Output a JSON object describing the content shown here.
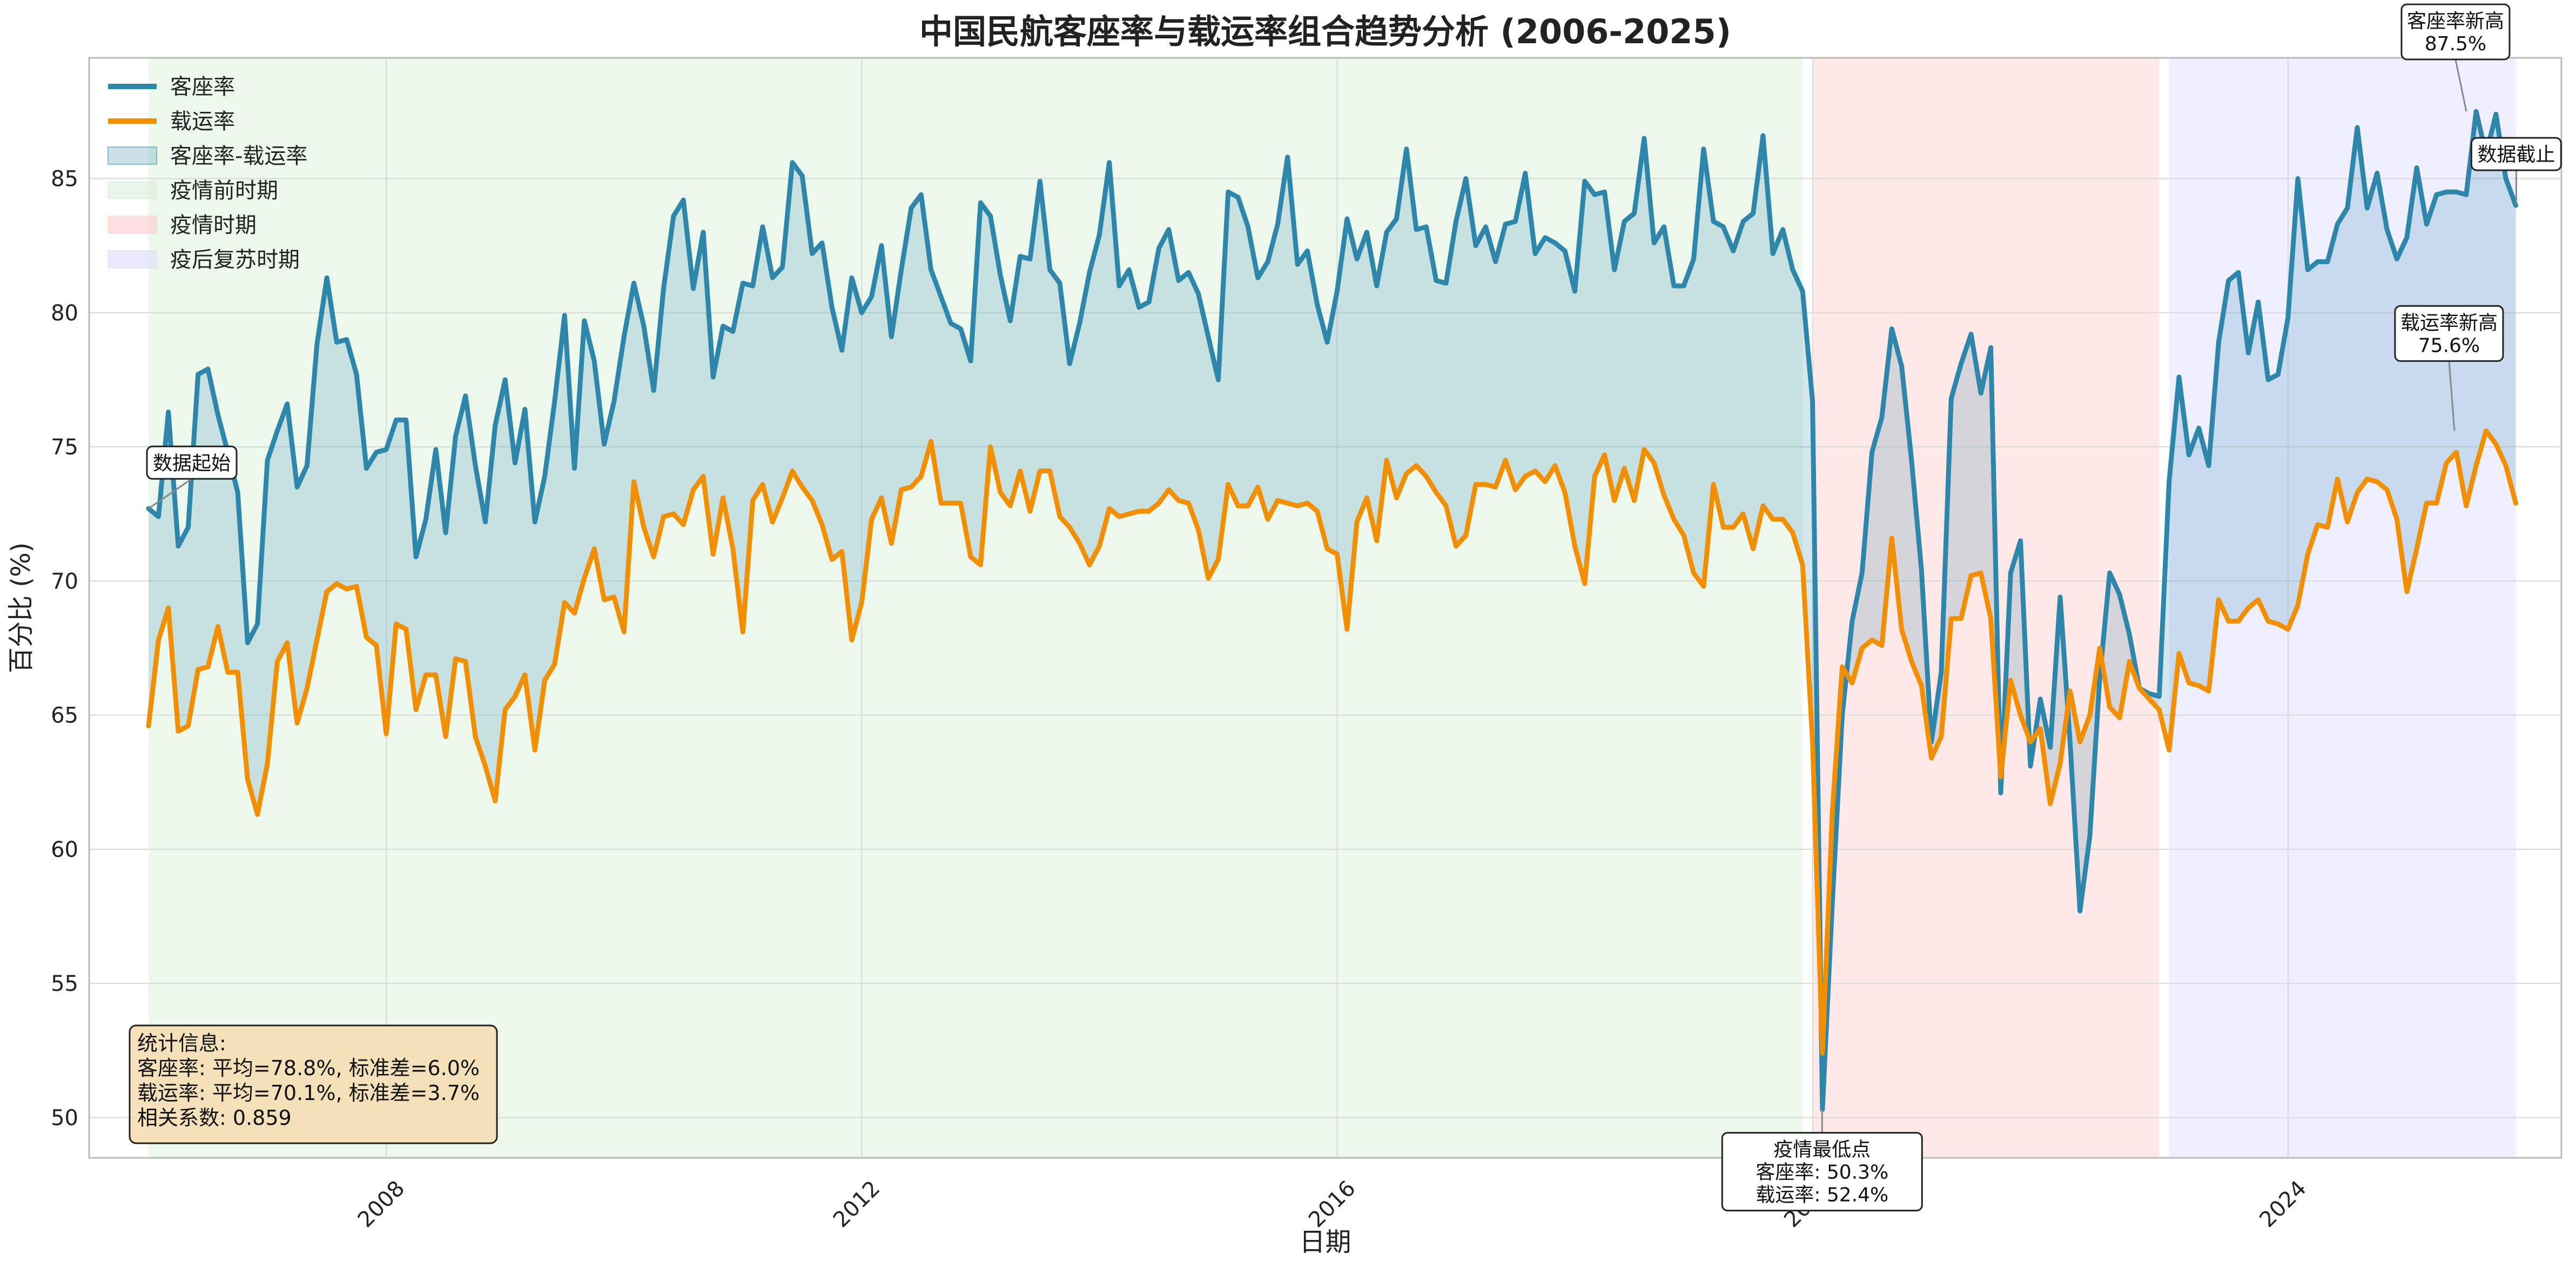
{
  "chart_data": {
    "type": "line",
    "title": "中国民航客座率与载运率组合趋势分析 (2006-2025)",
    "xlabel": "日期",
    "ylabel": "百分比 (%)",
    "xlim": [
      2005.5,
      2026.3
    ],
    "ylim": [
      48.5,
      89.5
    ],
    "x_ticks": [
      2008,
      2012,
      2016,
      2020,
      2024
    ],
    "y_ticks": [
      50,
      55,
      60,
      65,
      70,
      75,
      80,
      85
    ],
    "grid": true,
    "legend_position": "top-left",
    "legend": [
      {
        "label": "客座率",
        "kind": "line",
        "color": "#2e86ab"
      },
      {
        "label": "载运率",
        "kind": "line",
        "color": "#f18f01"
      },
      {
        "label": "客座率-载运率",
        "kind": "patch",
        "color": "#2e86ab"
      },
      {
        "label": "疫情前时期",
        "kind": "patch",
        "color": "#d8efd8"
      },
      {
        "label": "疫情时期",
        "kind": "patch",
        "color": "#ffcccc"
      },
      {
        "label": "疫后复苏时期",
        "kind": "patch",
        "color": "#dcdcff"
      }
    ],
    "periods": [
      {
        "name": "疫情前时期",
        "start": 2006.0,
        "end": 2019.917,
        "color": "#d8efd8"
      },
      {
        "name": "疫情时期",
        "start": 2020.0,
        "end": 2022.917,
        "color": "#ffcccc"
      },
      {
        "name": "疫后复苏时期",
        "start": 2023.0,
        "end": 2025.917,
        "color": "#dcdcff"
      }
    ],
    "series": [
      {
        "name": "客座率",
        "color": "#2e86ab",
        "x_start": 2006.0,
        "x_step": 0.08333,
        "values": [
          72.7,
          72.4,
          76.3,
          71.3,
          72.0,
          77.7,
          77.9,
          76.2,
          74.8,
          73.3,
          67.7,
          68.4,
          74.5,
          75.6,
          76.6,
          73.5,
          74.3,
          78.8,
          81.3,
          78.9,
          79.0,
          77.7,
          74.2,
          74.8,
          74.9,
          76.0,
          76.0,
          70.9,
          72.3,
          74.9,
          71.8,
          75.4,
          76.9,
          74.3,
          72.2,
          75.8,
          77.5,
          74.4,
          76.4,
          72.2,
          73.9,
          76.7,
          79.9,
          74.2,
          79.7,
          78.2,
          75.1,
          76.7,
          79.1,
          81.1,
          79.5,
          77.1,
          80.9,
          83.6,
          84.2,
          80.9,
          83.0,
          77.6,
          79.5,
          79.3,
          81.1,
          81.0,
          83.2,
          81.3,
          81.7,
          85.6,
          85.1,
          82.2,
          82.6,
          80.2,
          78.6,
          81.3,
          80.0,
          80.6,
          82.5,
          79.1,
          81.6,
          83.9,
          84.4,
          81.6,
          80.6,
          79.6,
          79.4,
          78.2,
          84.1,
          83.6,
          81.4,
          79.7,
          82.1,
          82.0,
          84.9,
          81.6,
          81.1,
          78.1,
          79.6,
          81.5,
          82.9,
          85.6,
          81.0,
          81.6,
          80.2,
          80.4,
          82.4,
          83.1,
          81.2,
          81.5,
          80.7,
          79.1,
          77.5,
          84.5,
          84.3,
          83.2,
          81.3,
          81.9,
          83.3,
          85.8,
          81.8,
          82.3,
          80.3,
          78.9,
          80.8,
          83.5,
          82.0,
          83.0,
          81.0,
          83.0,
          83.5,
          86.1,
          83.1,
          83.2,
          81.2,
          81.1,
          83.4,
          85.0,
          82.5,
          83.2,
          81.9,
          83.3,
          83.4,
          85.2,
          82.2,
          82.8,
          82.6,
          82.3,
          80.8,
          84.9,
          84.4,
          84.5,
          81.6,
          83.4,
          83.7,
          86.5,
          82.6,
          83.2,
          81.0,
          81.0,
          82.0,
          86.1,
          83.4,
          83.2,
          82.3,
          83.4,
          83.7,
          86.6,
          82.2,
          83.1,
          81.6,
          80.8,
          76.7,
          50.3,
          58.0,
          65.0,
          68.5,
          70.3,
          74.8,
          76.1,
          79.4,
          78.0,
          74.5,
          70.4,
          64.0,
          66.6,
          76.8,
          78.1,
          79.2,
          77.0,
          78.7,
          62.1,
          70.3,
          71.5,
          63.1,
          65.6,
          63.8,
          69.4,
          64.0,
          57.7,
          60.5,
          66.4,
          70.3,
          69.5,
          68.0,
          66.0,
          65.8,
          65.7,
          73.7,
          77.6,
          74.7,
          75.7,
          74.3,
          78.9,
          81.2,
          81.5,
          78.5,
          80.4,
          77.5,
          77.7,
          79.8,
          85.0,
          81.6,
          81.9,
          81.9,
          83.3,
          83.9,
          86.9,
          83.9,
          85.2,
          83.1,
          82.0,
          82.8,
          85.4,
          83.3,
          84.4,
          84.5,
          84.5,
          84.4,
          87.5,
          85.9,
          87.4,
          85.0,
          84.0
        ]
      },
      {
        "name": "载运率",
        "color": "#f18f01",
        "x_start": 2006.0,
        "x_step": 0.08333,
        "values": [
          64.6,
          67.8,
          69.0,
          64.4,
          64.6,
          66.7,
          66.8,
          68.3,
          66.6,
          66.6,
          62.6,
          61.3,
          63.2,
          67.0,
          67.7,
          64.7,
          66.0,
          67.8,
          69.6,
          69.9,
          69.7,
          69.8,
          67.9,
          67.6,
          64.3,
          68.4,
          68.2,
          65.2,
          66.5,
          66.5,
          64.2,
          67.1,
          67.0,
          64.2,
          63.1,
          61.8,
          65.2,
          65.7,
          66.5,
          63.7,
          66.3,
          66.9,
          69.2,
          68.8,
          70.1,
          71.2,
          69.3,
          69.4,
          68.1,
          73.7,
          72.0,
          70.9,
          72.4,
          72.5,
          72.1,
          73.4,
          73.9,
          71.0,
          73.1,
          71.2,
          68.1,
          73.0,
          73.6,
          72.2,
          73.1,
          74.1,
          73.5,
          73.0,
          72.1,
          70.8,
          71.1,
          67.8,
          69.2,
          72.3,
          73.1,
          71.4,
          73.4,
          73.5,
          73.9,
          75.2,
          72.9,
          72.9,
          72.9,
          70.9,
          70.6,
          75.0,
          73.3,
          72.8,
          74.1,
          72.6,
          74.1,
          74.1,
          72.4,
          72.0,
          71.4,
          70.6,
          71.3,
          72.7,
          72.4,
          72.5,
          72.6,
          72.6,
          72.9,
          73.4,
          73.0,
          72.9,
          71.9,
          70.1,
          70.8,
          73.6,
          72.8,
          72.8,
          73.5,
          72.3,
          73.0,
          72.9,
          72.8,
          72.9,
          72.6,
          71.2,
          71.0,
          68.2,
          72.2,
          73.1,
          71.5,
          74.5,
          73.1,
          74.0,
          74.3,
          73.9,
          73.3,
          72.8,
          71.3,
          71.7,
          73.6,
          73.6,
          73.5,
          74.5,
          73.4,
          73.9,
          74.1,
          73.7,
          74.3,
          73.3,
          71.3,
          69.9,
          73.9,
          74.7,
          73.0,
          74.2,
          73.0,
          74.9,
          74.4,
          73.2,
          72.3,
          71.7,
          70.3,
          69.8,
          73.6,
          72.0,
          72.0,
          72.5,
          71.2,
          72.8,
          72.3,
          72.3,
          71.8,
          70.6,
          64.0,
          52.4,
          61.4,
          66.8,
          66.2,
          67.5,
          67.8,
          67.6,
          71.6,
          68.2,
          67.0,
          66.1,
          63.4,
          64.2,
          68.6,
          68.6,
          70.2,
          70.3,
          68.6,
          62.7,
          66.3,
          65.0,
          64.0,
          64.5,
          61.7,
          63.2,
          65.9,
          64.0,
          65.0,
          67.5,
          65.3,
          64.9,
          67.0,
          66.0,
          65.6,
          65.2,
          63.7,
          67.3,
          66.2,
          66.1,
          65.9,
          69.3,
          68.5,
          68.5,
          69.0,
          69.3,
          68.5,
          68.4,
          68.2,
          69.1,
          71.0,
          72.1,
          72.0,
          73.8,
          72.2,
          73.3,
          73.8,
          73.7,
          73.4,
          72.3,
          69.6,
          71.2,
          72.9,
          72.9,
          74.4,
          74.8,
          72.8,
          74.3,
          75.6,
          75.1,
          74.3,
          72.9
        ]
      }
    ],
    "fill_between_label": "客座率-载运率",
    "annotations": [
      {
        "lines": [
          "数据起始"
        ],
        "x": 2006.0,
        "y": 72.7
      },
      {
        "lines": [
          "疫情最低点",
          "客座率: 50.3%",
          "载运率: 52.4%"
        ],
        "x": 2020.08,
        "y": 50.3
      },
      {
        "lines": [
          "载运率新高",
          "75.6%"
        ],
        "x": 2025.4,
        "y": 75.6
      },
      {
        "lines": [
          "客座率新高",
          "87.5%"
        ],
        "x": 2025.5,
        "y": 87.5
      },
      {
        "lines": [
          "数据截止"
        ],
        "x": 2025.92,
        "y": 84.0
      }
    ],
    "stats_box": {
      "lines": [
        "统计信息:",
        "客座率: 平均=78.8%, 标准差=6.0%",
        "载运率: 平均=70.1%, 标准差=3.7%",
        "相关系数: 0.859"
      ]
    }
  }
}
